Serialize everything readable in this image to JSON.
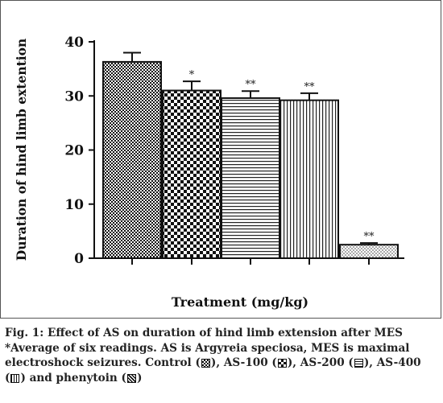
{
  "chart_data": {
    "type": "bar",
    "categories": [
      "Control",
      "AS-100",
      "AS-200",
      "AS-400",
      "Phenytoin"
    ],
    "values": [
      36.3,
      31.0,
      29.6,
      29.2,
      2.5
    ],
    "errors": [
      1.7,
      1.7,
      1.3,
      1.3,
      0.3
    ],
    "annotations": [
      "",
      "*",
      "**",
      "**",
      "**"
    ],
    "ylabel": "Duration of hind limb extention",
    "xlabel": "Treatment (mg/kg)",
    "ylim": [
      0,
      40
    ],
    "yticks": [
      "0",
      "10",
      "20",
      "30",
      "40"
    ],
    "grid": false
  },
  "caption": {
    "line1": "Fig. 1: Effect of AS on duration of hind limb extension after MES",
    "line2": "*Average of six readings. AS is Argyreia speciosa, MES is maximal",
    "line3": "electroshock seizures.",
    "legend": [
      {
        "label": "Control",
        "pattern": "control"
      },
      {
        "label": "AS-100",
        "pattern": "as100"
      },
      {
        "label": "AS-200",
        "pattern": "as200"
      },
      {
        "label": "AS-400",
        "pattern": "as400"
      },
      {
        "label": "phenytoin",
        "pattern": "phen"
      }
    ],
    "and": "and"
  },
  "colors": {
    "ink": "#111111",
    "frame": "#555555"
  }
}
